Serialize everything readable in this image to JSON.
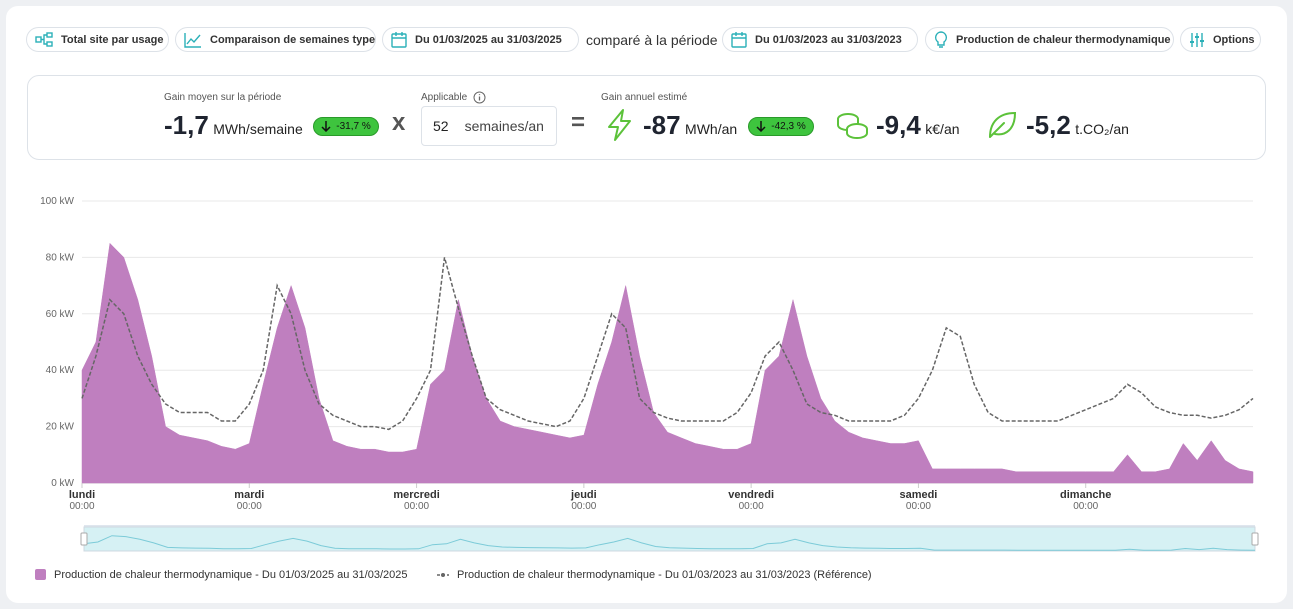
{
  "toolbar": {
    "usage": "Total site par usage",
    "compare_mode": "Comparaison de semaines type",
    "period": "Du 01/03/2025 au 31/03/2025",
    "compare_label": "comparé à la période",
    "reference_period": "Du 01/03/2023 au 31/03/2023",
    "measure": "Production de chaleur thermodynamique",
    "options": "Options"
  },
  "kpi": {
    "avg_label": "Gain moyen sur la période",
    "avg_value": "-1,7",
    "avg_unit": "MWh/semaine",
    "avg_badge": "-31,7 %",
    "times": "x",
    "applicable_label": "Applicable",
    "weeks_value": "52",
    "weeks_unit": "semaines/an",
    "equals": "=",
    "annual_label": "Gain annuel estimé",
    "energy_value": "-87",
    "energy_unit": "MWh/an",
    "energy_badge": "-42,3 %",
    "cost_value": "-9,4",
    "cost_unit": "k€/an",
    "co2_value": "-5,2",
    "co2_unit": "t.CO₂/an"
  },
  "chart_data": {
    "type": "area",
    "x": [
      0,
      2,
      4,
      6,
      8,
      10,
      12,
      14,
      16,
      18,
      20,
      22,
      24,
      26,
      28,
      30,
      32,
      34,
      36,
      38,
      40,
      42,
      44,
      46,
      48,
      50,
      52,
      54,
      56,
      58,
      60,
      62,
      64,
      66,
      68,
      70,
      72,
      74,
      76,
      78,
      80,
      82,
      84,
      86,
      88,
      90,
      92,
      94,
      96,
      98,
      100,
      102,
      104,
      106,
      108,
      110,
      112,
      114,
      116,
      118,
      120,
      122,
      124,
      126,
      128,
      130,
      132,
      134,
      136,
      138,
      140,
      142,
      144,
      146,
      148,
      150,
      152,
      154,
      156,
      158,
      160,
      162,
      164,
      166,
      168
    ],
    "series": [
      {
        "name": "Production de chaleur thermodynamique - Du 01/03/2025 au 31/03/2025",
        "color": "#bf7fbf",
        "style": "area",
        "values": [
          40,
          50,
          85,
          80,
          65,
          45,
          20,
          17,
          16,
          15,
          13,
          12,
          14,
          35,
          55,
          70,
          55,
          30,
          15,
          13,
          12,
          12,
          11,
          11,
          12,
          35,
          40,
          65,
          45,
          30,
          22,
          20,
          19,
          18,
          17,
          16,
          17,
          35,
          50,
          70,
          45,
          25,
          18,
          16,
          14,
          13,
          12,
          12,
          14,
          40,
          45,
          65,
          45,
          30,
          22,
          18,
          16,
          15,
          14,
          14,
          15,
          5,
          5,
          5,
          5,
          5,
          5,
          4,
          4,
          4,
          4,
          4,
          4,
          4,
          4,
          10,
          4,
          4,
          5,
          14,
          8,
          15,
          8,
          5,
          4
        ]
      },
      {
        "name": "Production de chaleur thermodynamique - Du 01/03/2023 au 31/03/2023 (Référence)",
        "color": "#666666",
        "style": "dashed-line",
        "values": [
          30,
          45,
          65,
          60,
          45,
          35,
          28,
          25,
          25,
          25,
          22,
          22,
          28,
          40,
          70,
          60,
          40,
          28,
          24,
          22,
          20,
          20,
          19,
          22,
          30,
          40,
          80,
          62,
          45,
          30,
          26,
          24,
          22,
          21,
          20,
          22,
          30,
          45,
          60,
          55,
          30,
          25,
          23,
          22,
          22,
          22,
          22,
          25,
          32,
          45,
          50,
          40,
          28,
          25,
          24,
          22,
          22,
          22,
          22,
          24,
          30,
          40,
          55,
          52,
          35,
          25,
          22,
          22,
          22,
          22,
          22,
          24,
          26,
          28,
          30,
          35,
          32,
          27,
          25,
          24,
          24,
          23,
          24,
          26,
          30
        ]
      }
    ],
    "xlim": [
      0,
      168
    ],
    "xticks": [
      {
        "value": 0,
        "label": "lundi",
        "sublabel": "00:00"
      },
      {
        "value": 24,
        "label": "mardi",
        "sublabel": "00:00"
      },
      {
        "value": 48,
        "label": "mercredi",
        "sublabel": "00:00"
      },
      {
        "value": 72,
        "label": "jeudi",
        "sublabel": "00:00"
      },
      {
        "value": 96,
        "label": "vendredi",
        "sublabel": "00:00"
      },
      {
        "value": 120,
        "label": "samedi",
        "sublabel": "00:00"
      },
      {
        "value": 144,
        "label": "dimanche",
        "sublabel": "00:00"
      }
    ],
    "ylim": [
      0,
      100
    ],
    "yticks": [
      {
        "value": 0,
        "label": "0 kW"
      },
      {
        "value": 20,
        "label": "20 kW"
      },
      {
        "value": 40,
        "label": "40 kW"
      },
      {
        "value": 60,
        "label": "60 kW"
      },
      {
        "value": 80,
        "label": "80 kW"
      },
      {
        "value": 100,
        "label": "100 kW"
      }
    ],
    "grid": true,
    "navigator": true
  }
}
